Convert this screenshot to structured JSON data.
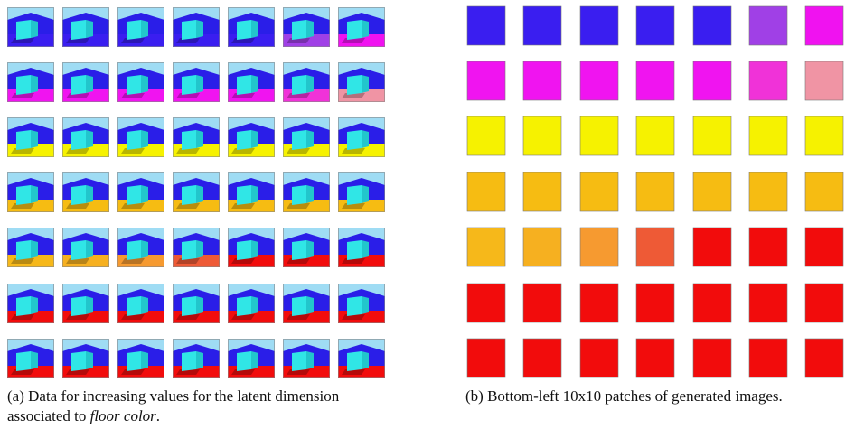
{
  "figure": {
    "caption_a": {
      "label": "(a)",
      "text": "Data for increasing values for the latent dimension associated to",
      "emphasis": "floor color",
      "end": "."
    },
    "caption_b": {
      "label": "(b)",
      "text": "Bottom-left 10x10 patches of generated images."
    }
  }
}
